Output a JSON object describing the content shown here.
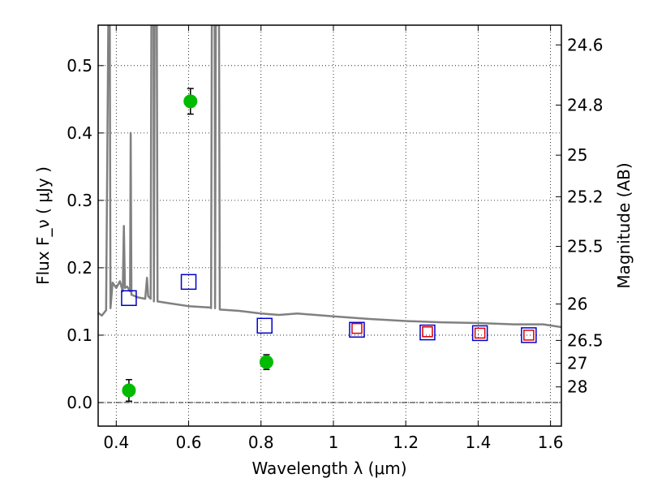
{
  "chart_data": {
    "type": "scatter",
    "xlabel": "Wavelength  λ (μm)",
    "ylabel": "Flux  F_ν  ( μJy )",
    "ylabel_right": "Magnitude (AB)",
    "xlim": [
      0.35,
      1.63
    ],
    "ylim": [
      -0.035,
      0.56
    ],
    "grid": true,
    "x_ticks": [
      0.4,
      0.6,
      0.8,
      1,
      1.2,
      1.4,
      1.6
    ],
    "x_tick_labels": [
      "0.4",
      "0.6",
      "0.8",
      "1",
      "1.2",
      "1.4",
      "1.6"
    ],
    "y_ticks": [
      0.0,
      0.1,
      0.2,
      0.3,
      0.4,
      0.5
    ],
    "y_tick_labels": [
      "0.0",
      "0.1",
      "0.2",
      "0.3",
      "0.4",
      "0.5"
    ],
    "right_ticks": [
      {
        "label": "24.6",
        "flux": 0.5307
      },
      {
        "label": "24.8",
        "flux": 0.4414
      },
      {
        "label": "25",
        "flux": 0.3671
      },
      {
        "label": "25.2",
        "flux": 0.3054
      },
      {
        "label": "25.5",
        "flux": 0.2317
      },
      {
        "label": "26",
        "flux": 0.1462
      },
      {
        "label": "26.5",
        "flux": 0.0922
      },
      {
        "label": "27",
        "flux": 0.0582
      },
      {
        "label": "28",
        "flux": 0.0232
      }
    ],
    "series": [
      {
        "name": "model spectrum",
        "kind": "line",
        "color": "#808080",
        "points": [
          [
            0.35,
            0.133
          ],
          [
            0.36,
            0.129
          ],
          [
            0.372,
            0.137
          ],
          [
            0.378,
            0.56
          ],
          [
            0.382,
            0.56
          ],
          [
            0.384,
            0.14
          ],
          [
            0.39,
            0.178
          ],
          [
            0.4,
            0.17
          ],
          [
            0.41,
            0.18
          ],
          [
            0.418,
            0.165
          ],
          [
            0.421,
            0.262
          ],
          [
            0.424,
            0.17
          ],
          [
            0.43,
            0.172
          ],
          [
            0.438,
            0.165
          ],
          [
            0.44,
            0.4
          ],
          [
            0.442,
            0.16
          ],
          [
            0.46,
            0.156
          ],
          [
            0.48,
            0.154
          ],
          [
            0.485,
            0.185
          ],
          [
            0.488,
            0.158
          ],
          [
            0.495,
            0.154
          ],
          [
            0.497,
            0.56
          ],
          [
            0.503,
            0.56
          ],
          [
            0.504,
            0.15
          ],
          [
            0.506,
            0.56
          ],
          [
            0.512,
            0.56
          ],
          [
            0.514,
            0.15
          ],
          [
            0.55,
            0.147
          ],
          [
            0.6,
            0.143
          ],
          [
            0.66,
            0.141
          ],
          [
            0.662,
            0.14
          ],
          [
            0.664,
            0.56
          ],
          [
            0.672,
            0.56
          ],
          [
            0.673,
            0.14
          ],
          [
            0.675,
            0.56
          ],
          [
            0.684,
            0.56
          ],
          [
            0.686,
            0.138
          ],
          [
            0.74,
            0.136
          ],
          [
            0.8,
            0.132
          ],
          [
            0.85,
            0.13
          ],
          [
            0.9,
            0.132
          ],
          [
            1.0,
            0.128
          ],
          [
            1.1,
            0.124
          ],
          [
            1.2,
            0.121
          ],
          [
            1.3,
            0.119
          ],
          [
            1.4,
            0.118
          ],
          [
            1.5,
            0.116
          ],
          [
            1.58,
            0.116
          ],
          [
            1.63,
            0.112
          ]
        ]
      },
      {
        "name": "blue squares",
        "kind": "open-square",
        "color": "#0000cc",
        "points": [
          [
            0.435,
            0.155
          ],
          [
            0.6,
            0.179
          ],
          [
            0.81,
            0.114
          ],
          [
            1.065,
            0.108
          ],
          [
            1.26,
            0.104
          ],
          [
            1.405,
            0.103
          ],
          [
            1.54,
            0.1
          ]
        ]
      },
      {
        "name": "red squares",
        "kind": "open-square",
        "color": "#dd0000",
        "points": [
          [
            1.065,
            0.11
          ],
          [
            1.26,
            0.105
          ],
          [
            1.405,
            0.103
          ],
          [
            1.54,
            0.1
          ]
        ]
      },
      {
        "name": "green observations",
        "kind": "filled-circle",
        "color": "#00bb00",
        "points": [
          {
            "x": 0.435,
            "y": 0.018,
            "err": 0.016
          },
          {
            "x": 0.605,
            "y": 0.447,
            "err": 0.019
          },
          {
            "x": 0.815,
            "y": 0.06,
            "err": 0.011
          }
        ]
      }
    ],
    "reference_line": {
      "y": 0.0,
      "style": "dash-dot",
      "color": "#000000"
    }
  }
}
